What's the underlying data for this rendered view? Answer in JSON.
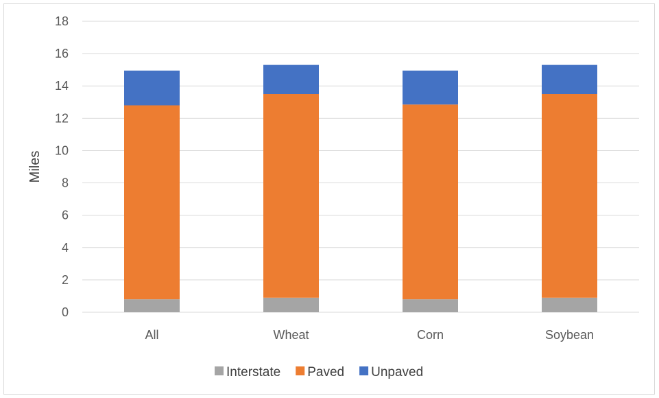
{
  "chart_data": {
    "type": "bar",
    "stacked": true,
    "title": "",
    "xlabel": "",
    "ylabel": "Miles",
    "ylim": [
      0,
      18
    ],
    "yticks": [
      0,
      2,
      4,
      6,
      8,
      10,
      12,
      14,
      16,
      18
    ],
    "grid": true,
    "legend_position": "bottom",
    "categories": [
      "All",
      "Wheat",
      "Corn",
      "Soybean"
    ],
    "series": [
      {
        "name": "Interstate",
        "color": "#a5a5a5",
        "values": [
          0.8,
          0.9,
          0.8,
          0.9
        ]
      },
      {
        "name": "Paved",
        "color": "#ed7d31",
        "values": [
          12.0,
          12.6,
          12.05,
          12.6
        ]
      },
      {
        "name": "Unpaved",
        "color": "#4472c4",
        "values": [
          2.15,
          1.8,
          2.1,
          1.8
        ]
      }
    ]
  }
}
